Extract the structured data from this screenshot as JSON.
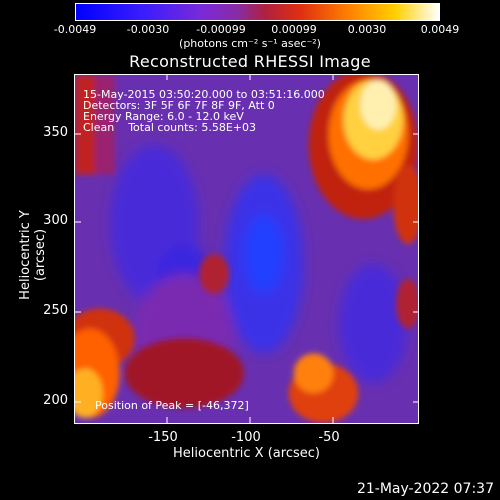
{
  "colorbar": {
    "ticks": [
      "-0.0049",
      "-0.0030",
      "-0.00099",
      "0.00099",
      "0.0030",
      "0.0049"
    ],
    "units": "(photons cm⁻² s⁻¹ asec⁻²)"
  },
  "title": "Reconstructed RHESSI Image",
  "info": {
    "line1": "15-May-2015 03:50:20.000 to 03:51:16.000",
    "line2": "Detectors: 3F 5F 6F 7F 8F 9F, Att 0",
    "line3": "Energy Range: 6.0 - 12.0 keV",
    "line4": "Clean    Total counts: 5.58E+03",
    "peak": "Position of Peak = [-46,372]"
  },
  "axes": {
    "ylabel": "Heliocentric Y (arcsec)",
    "xlabel": "Heliocentric X (arcsec)",
    "yticks": [
      "350",
      "300",
      "250",
      "200"
    ],
    "xticks": [
      "-150",
      "-100",
      "-50"
    ]
  },
  "timestamp": "21-May-2022 07:37"
}
